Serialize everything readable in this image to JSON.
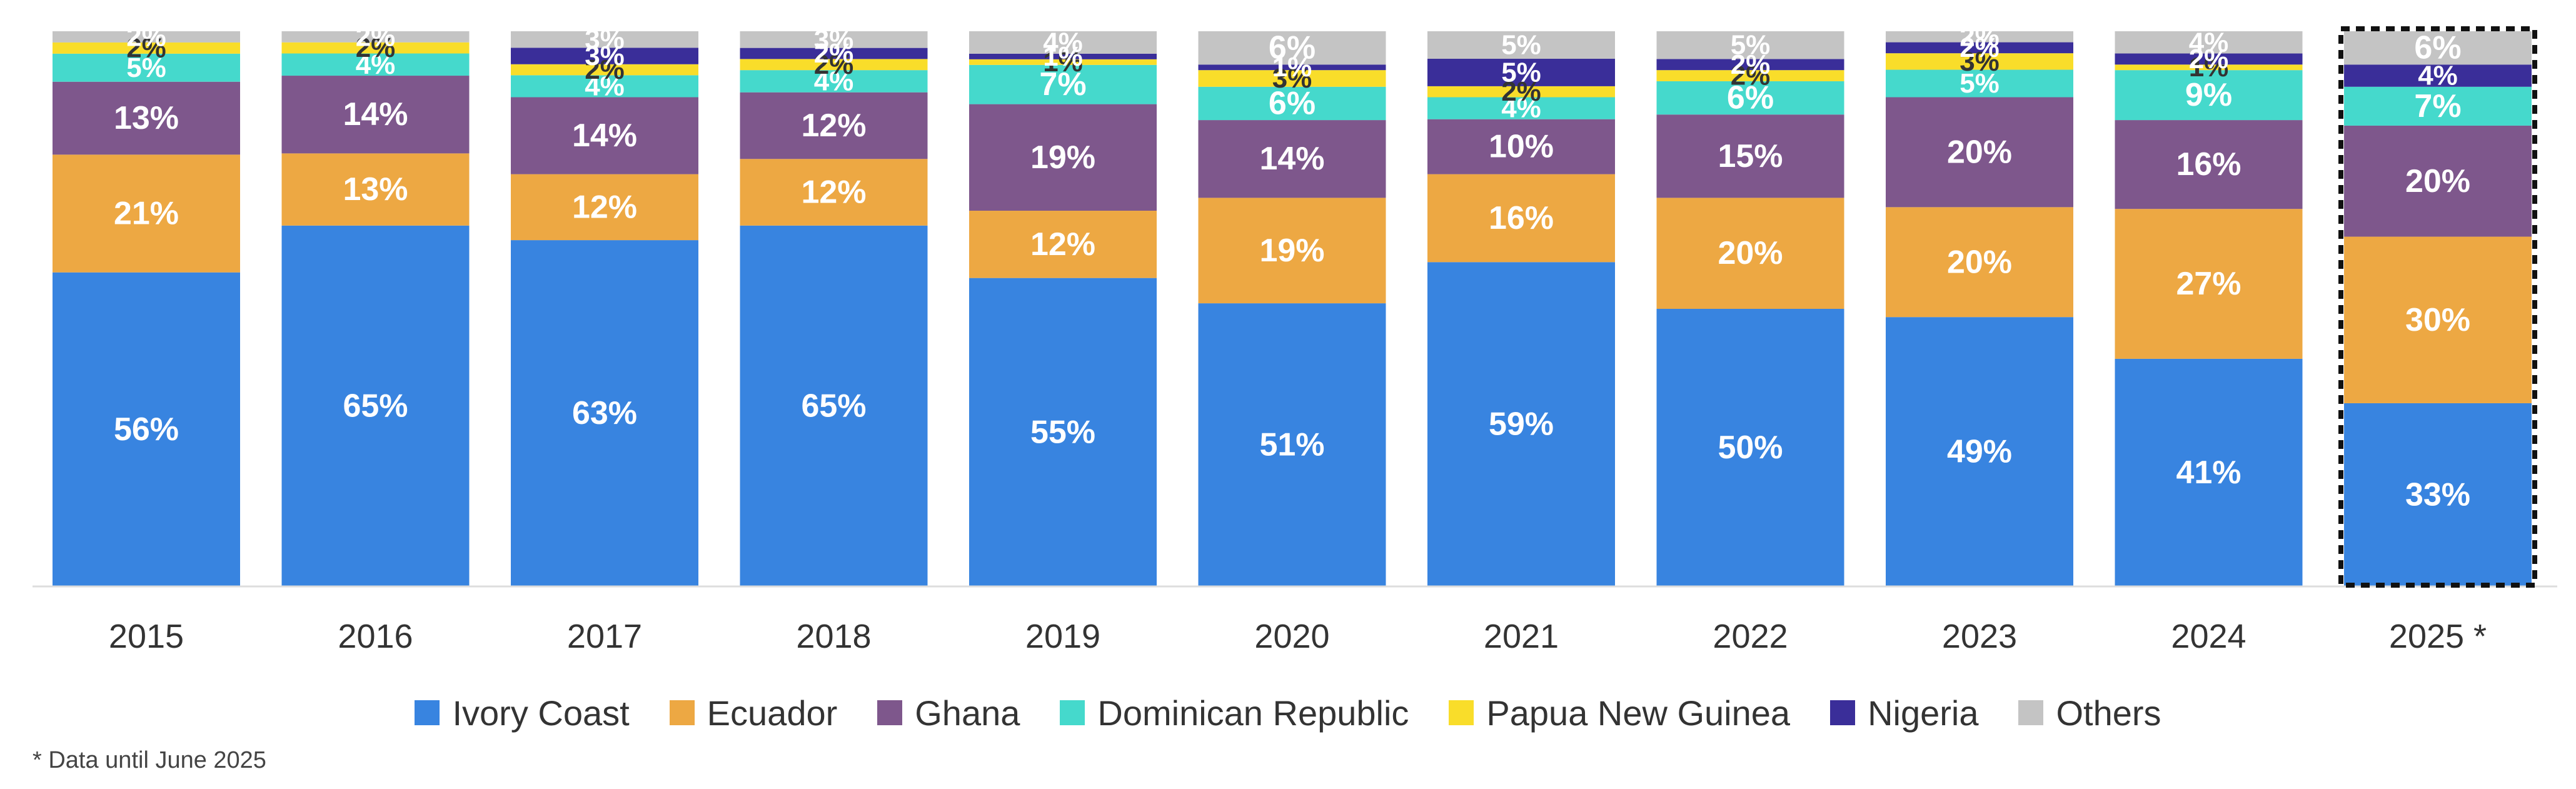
{
  "chart_data": {
    "type": "bar",
    "stacked": true,
    "normalized": true,
    "title": "",
    "xlabel": "",
    "ylabel": "",
    "ylim": [
      0,
      100
    ],
    "grid": false,
    "legend_position": "bottom",
    "categories": [
      "2015",
      "2016",
      "2017",
      "2018",
      "2019",
      "2020",
      "2021",
      "2022",
      "2023",
      "2024",
      "2025 *"
    ],
    "highlighted_category": "2025 *",
    "series": [
      {
        "name": "Ivory Coast",
        "color": "#3884E0",
        "label_color": "#ffffff",
        "values": [
          56,
          65,
          63,
          65,
          55,
          51,
          59,
          50,
          49,
          41,
          33
        ]
      },
      {
        "name": "Ecuador",
        "color": "#EDA843",
        "label_color": "#ffffff",
        "values": [
          21,
          13,
          12,
          12,
          12,
          19,
          16,
          20,
          20,
          27,
          30
        ]
      },
      {
        "name": "Ghana",
        "color": "#7E578C",
        "label_color": "#ffffff",
        "values": [
          13,
          14,
          14,
          12,
          19,
          14,
          10,
          15,
          20,
          16,
          20
        ]
      },
      {
        "name": "Dominican Republic",
        "color": "#45D9CC",
        "label_color": "#ffffff",
        "values": [
          5,
          4,
          4,
          4,
          7,
          6,
          4,
          6,
          5,
          9,
          7
        ]
      },
      {
        "name": "Papua New Guinea",
        "color": "#F9DD2A",
        "label_color": "#333333",
        "values": [
          2,
          2,
          2,
          2,
          1,
          3,
          2,
          2,
          3,
          1,
          0
        ]
      },
      {
        "name": "Nigeria",
        "color": "#3A2E99",
        "label_color": "#ffffff",
        "values": [
          0,
          0,
          3,
          2,
          1,
          1,
          5,
          2,
          2,
          2,
          4
        ]
      },
      {
        "name": "Others",
        "color": "#C4C4C4",
        "label_color": "#ffffff",
        "values": [
          2,
          2,
          3,
          3,
          4,
          6,
          5,
          5,
          2,
          4,
          6
        ]
      }
    ],
    "footnote": "* Data until June 2025"
  }
}
